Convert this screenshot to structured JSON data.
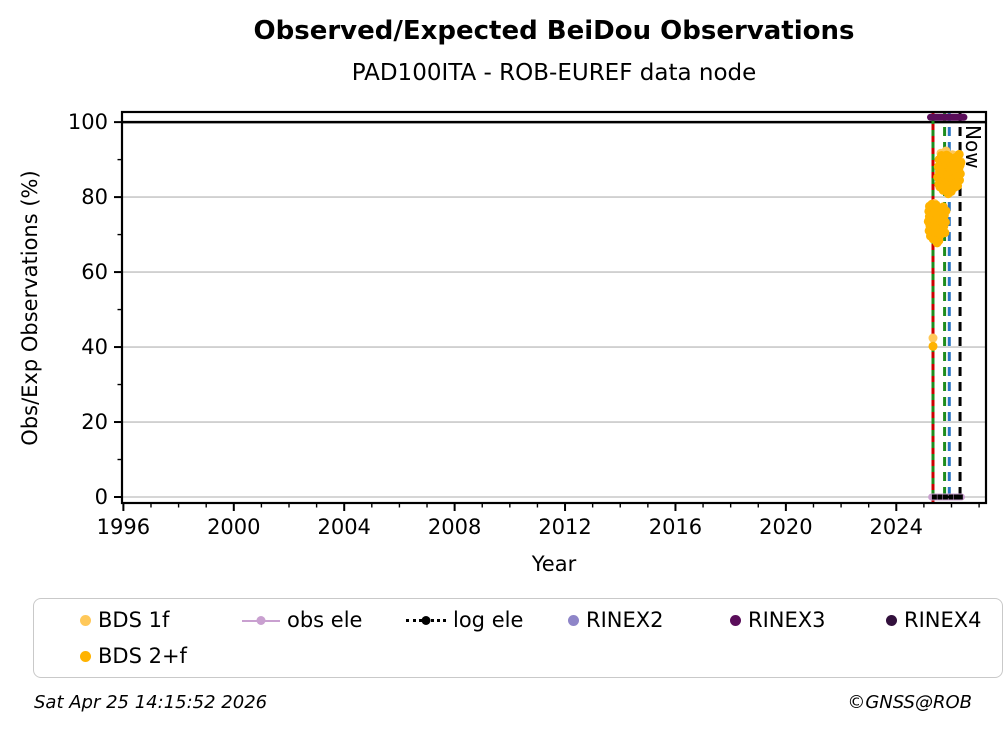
{
  "footer": {
    "timestamp": "Sat Apr 25 14:15:52 2026",
    "credit": "©GNSS@ROB"
  },
  "legend": {
    "items": [
      {
        "label": "BDS 1f",
        "type": "dot",
        "color": "#FFC859",
        "x": 46,
        "row": 1
      },
      {
        "label": "BDS 2+f",
        "type": "dot",
        "color": "#FFB300",
        "x": 46,
        "row": 2
      },
      {
        "label": "obs ele",
        "type": "line-dot",
        "color": "#C9A0D0",
        "x": 208,
        "row": 1
      },
      {
        "label": "log ele",
        "type": "dotted-line",
        "color": "#000000",
        "x": 372,
        "row": 1
      },
      {
        "label": "RINEX2",
        "type": "dot",
        "color": "#8E85C8",
        "x": 534,
        "row": 1
      },
      {
        "label": "RINEX3",
        "type": "dot",
        "color": "#5A0D5A",
        "x": 696,
        "row": 1
      },
      {
        "label": "RINEX4",
        "type": "dot",
        "color": "#32103C",
        "x": 852,
        "row": 1
      }
    ]
  },
  "chart_data": {
    "type": "scatter",
    "title": "Observed/Expected BeiDou Observations",
    "subtitle": "PAD100ITA - ROB-EUREF data node",
    "xlabel": "Year",
    "ylabel": "Obs/Exp Observations (%)",
    "now_label": "Now",
    "xlim": [
      1995.95,
      2027.25
    ],
    "ylim": [
      -1.6,
      102.7
    ],
    "xticks_major": [
      1996,
      2000,
      2004,
      2008,
      2012,
      2016,
      2020,
      2024
    ],
    "xtick_minor_step": 1,
    "yticks_major": [
      0,
      20,
      40,
      60,
      80,
      100
    ],
    "ytick_minor_step": 10,
    "grid": {
      "y_values": [
        0,
        20,
        40,
        60,
        80,
        100
      ],
      "color": "#c9c9c9",
      "vertical": false
    },
    "hline": {
      "y": 100,
      "color": "#000000"
    },
    "event_lines": [
      {
        "x": 2025.33,
        "style": "solid",
        "color": "#1E8C1E",
        "overlay_color": "#CC0000",
        "name": "receiver-change-line"
      },
      {
        "x": 2025.75,
        "style": "dashed",
        "color": "#1E8C1E",
        "name": "green-event-line"
      },
      {
        "x": 2025.92,
        "style": "dashed",
        "color": "#2A76C6",
        "name": "blue-event-line"
      },
      {
        "x": 2026.31,
        "style": "dashed",
        "color": "#000000",
        "name": "now-line",
        "label": "Now"
      }
    ],
    "bars": [
      {
        "name": "RINEX3",
        "y": 101.3,
        "x_start": 2025.24,
        "x_end": 2026.45,
        "color": "#5A0D5A",
        "width": 7
      },
      {
        "name": "obs ele",
        "y": 0,
        "x_start": 2025.28,
        "x_end": 2026.36,
        "color": "#C9A0D0",
        "width": 7
      },
      {
        "name": "log ele",
        "y": 0,
        "x_start": 2025.33,
        "x_end": 2026.33,
        "color": "#000000",
        "style": "dotted",
        "markers_x": [
          2025.38,
          2025.58,
          2025.78,
          2025.98,
          2026.18,
          2026.32
        ]
      }
    ],
    "series": [
      {
        "name": "BDS 1f",
        "color": "#FFC859",
        "marker": "circle",
        "points": [
          [
            2025.2,
            77.5
          ],
          [
            2025.26,
            72.5
          ],
          [
            2025.32,
            74.7
          ],
          [
            2025.38,
            78.3
          ],
          [
            2025.44,
            71.2
          ],
          [
            2025.5,
            76.6
          ],
          [
            2025.56,
            87.1
          ],
          [
            2025.62,
            91.7
          ],
          [
            2025.68,
            85.0
          ],
          [
            2025.74,
            89.1
          ],
          [
            2025.8,
            92.3
          ],
          [
            2025.86,
            87.0
          ],
          [
            2025.92,
            90.2
          ],
          [
            2025.98,
            85.4
          ],
          [
            2026.04,
            91.3
          ],
          [
            2026.1,
            88.0
          ],
          [
            2026.16,
            86.4
          ],
          [
            2026.22,
            90.3
          ],
          [
            2026.28,
            87.9
          ],
          [
            2026.33,
            89.5
          ],
          [
            2025.33,
            42.4
          ]
        ]
      },
      {
        "name": "BDS 2+f",
        "color": "#FFB300",
        "marker": "circle",
        "points": [
          [
            2025.16,
            73.5
          ],
          [
            2025.18,
            76.2
          ],
          [
            2025.19,
            71.0
          ],
          [
            2025.2,
            74.8
          ],
          [
            2025.21,
            77.6
          ],
          [
            2025.22,
            72.4
          ],
          [
            2025.23,
            75.5
          ],
          [
            2025.24,
            69.6
          ],
          [
            2025.25,
            73.0
          ],
          [
            2025.26,
            76.8
          ],
          [
            2025.27,
            71.7
          ],
          [
            2025.28,
            74.2
          ],
          [
            2025.29,
            78.1
          ],
          [
            2025.3,
            70.3
          ],
          [
            2025.31,
            75.0
          ],
          [
            2025.32,
            72.8
          ],
          [
            2025.33,
            76.5
          ],
          [
            2025.34,
            68.8
          ],
          [
            2025.35,
            74.6
          ],
          [
            2025.36,
            77.2
          ],
          [
            2025.37,
            71.3
          ],
          [
            2025.38,
            75.8
          ],
          [
            2025.39,
            73.2
          ],
          [
            2025.4,
            69.1
          ],
          [
            2025.41,
            76.0
          ],
          [
            2025.42,
            72.0
          ],
          [
            2025.43,
            74.4
          ],
          [
            2025.44,
            77.9
          ],
          [
            2025.45,
            70.7
          ],
          [
            2025.46,
            75.3
          ],
          [
            2025.47,
            73.7
          ],
          [
            2025.48,
            67.8
          ],
          [
            2025.5,
            71.5
          ],
          [
            2025.52,
            74.9
          ],
          [
            2025.54,
            68.4
          ],
          [
            2025.56,
            72.6
          ],
          [
            2025.58,
            75.7
          ],
          [
            2025.6,
            70.0
          ],
          [
            2025.62,
            73.9
          ],
          [
            2025.64,
            76.7
          ],
          [
            2025.66,
            71.9
          ],
          [
            2025.68,
            74.1
          ],
          [
            2025.7,
            77.4
          ],
          [
            2025.72,
            72.2
          ],
          [
            2025.74,
            75.1
          ],
          [
            2025.76,
            70.5
          ],
          [
            2025.78,
            73.3
          ],
          [
            2025.8,
            76.3
          ],
          [
            2025.5,
            85.3
          ],
          [
            2025.52,
            88.1
          ],
          [
            2025.54,
            83.4
          ],
          [
            2025.55,
            90.0
          ],
          [
            2025.57,
            86.5
          ],
          [
            2025.58,
            82.7
          ],
          [
            2025.6,
            89.3
          ],
          [
            2025.61,
            84.7
          ],
          [
            2025.63,
            87.2
          ],
          [
            2025.64,
            91.1
          ],
          [
            2025.66,
            83.1
          ],
          [
            2025.67,
            88.6
          ],
          [
            2025.69,
            85.8
          ],
          [
            2025.7,
            81.8
          ],
          [
            2025.72,
            90.4
          ],
          [
            2025.73,
            86.0
          ],
          [
            2025.75,
            83.7
          ],
          [
            2025.76,
            89.7
          ],
          [
            2025.78,
            85.1
          ],
          [
            2025.79,
            87.8
          ],
          [
            2025.81,
            82.3
          ],
          [
            2025.82,
            91.2
          ],
          [
            2025.84,
            86.7
          ],
          [
            2025.85,
            84.1
          ],
          [
            2025.87,
            88.3
          ],
          [
            2025.88,
            80.9
          ],
          [
            2025.9,
            90.8
          ],
          [
            2025.91,
            85.5
          ],
          [
            2025.93,
            87.5
          ],
          [
            2025.94,
            83.2
          ],
          [
            2025.96,
            89.4
          ],
          [
            2025.97,
            86.6
          ],
          [
            2025.99,
            81.5
          ],
          [
            2026.0,
            88.8
          ],
          [
            2026.02,
            84.8
          ],
          [
            2026.04,
            87.0
          ],
          [
            2026.05,
            90.1
          ],
          [
            2026.07,
            83.8
          ],
          [
            2026.08,
            86.1
          ],
          [
            2026.1,
            89.1
          ],
          [
            2026.11,
            82.6
          ],
          [
            2026.13,
            87.7
          ],
          [
            2026.14,
            85.2
          ],
          [
            2026.16,
            90.6
          ],
          [
            2026.17,
            84.0
          ],
          [
            2026.19,
            88.2
          ],
          [
            2026.2,
            86.9
          ],
          [
            2026.22,
            83.0
          ],
          [
            2026.23,
            89.8
          ],
          [
            2026.25,
            85.6
          ],
          [
            2026.26,
            87.3
          ],
          [
            2026.28,
            91.4
          ],
          [
            2026.29,
            84.5
          ],
          [
            2026.31,
            88.5
          ],
          [
            2026.32,
            86.2
          ],
          [
            2026.34,
            89.2
          ],
          [
            2025.33,
            40.2
          ]
        ]
      }
    ]
  }
}
